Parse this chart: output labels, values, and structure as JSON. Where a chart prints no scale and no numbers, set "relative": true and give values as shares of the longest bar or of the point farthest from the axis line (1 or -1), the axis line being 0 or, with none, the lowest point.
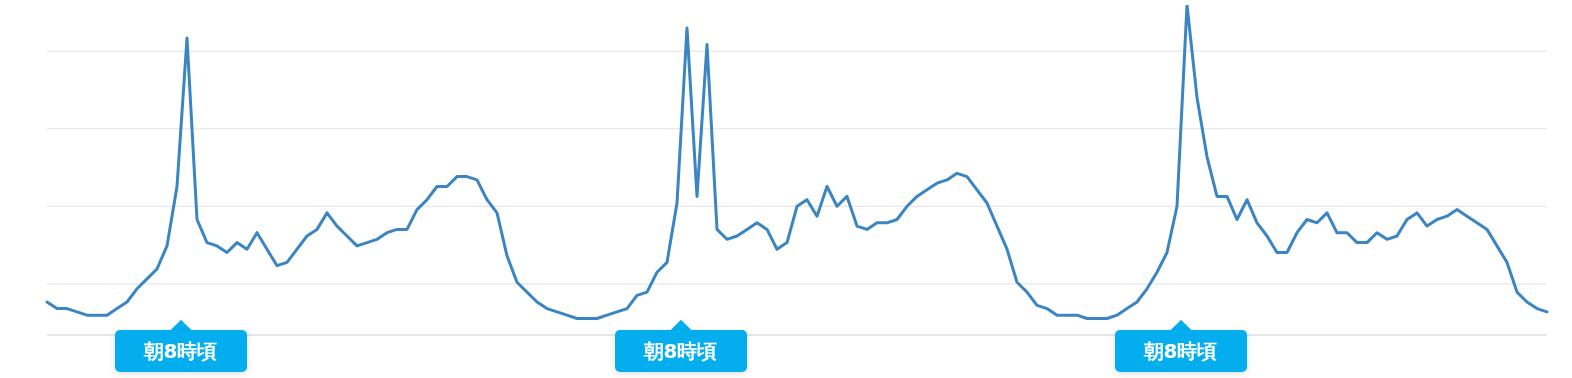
{
  "chart_data": {
    "type": "line",
    "relative": true,
    "grid": "y",
    "marker": "none",
    "line_style": "solid",
    "categories": [
      null,
      null,
      null,
      null,
      null,
      null,
      null,
      null,
      null,
      null,
      null,
      null,
      null,
      null,
      null,
      null,
      null,
      null,
      null,
      null,
      null,
      null,
      null,
      null,
      null,
      null,
      null,
      null,
      null,
      null,
      null,
      null,
      null,
      null,
      null,
      null,
      null,
      null,
      null,
      null,
      null,
      null,
      null,
      null,
      null,
      null,
      null,
      null,
      null,
      null,
      null,
      null,
      null,
      null,
      null,
      null,
      null,
      null,
      null,
      null,
      null,
      null,
      null,
      null,
      null,
      null,
      null,
      null,
      null,
      null,
      null,
      null,
      null,
      null,
      null,
      null,
      null,
      null,
      null,
      null,
      null,
      null,
      null,
      null,
      null,
      null,
      null,
      null,
      null,
      null,
      null,
      null,
      null,
      null,
      null,
      null,
      null,
      null,
      null,
      null,
      null,
      null,
      null,
      null,
      null,
      null,
      null,
      null,
      null,
      null,
      null,
      null,
      null,
      null,
      null,
      null,
      null,
      null,
      null,
      null,
      null,
      null,
      null,
      null,
      null,
      null,
      null,
      null,
      null,
      null,
      null,
      null,
      null,
      null,
      null,
      null,
      null,
      null,
      null,
      null,
      null,
      null,
      null,
      null,
      null,
      null,
      null,
      null,
      null,
      null,
      null
    ],
    "series": [
      {
        "color": "#3a85c2",
        "values": [
          0.1,
          0.08,
          0.08,
          0.07,
          0.06,
          0.06,
          0.06,
          0.08,
          0.1,
          0.14,
          0.17,
          0.2,
          0.27,
          0.45,
          0.9,
          0.35,
          0.28,
          0.27,
          0.25,
          0.28,
          0.26,
          0.31,
          0.26,
          0.21,
          0.22,
          0.26,
          0.3,
          0.32,
          0.37,
          0.33,
          0.3,
          0.27,
          0.28,
          0.29,
          0.31,
          0.32,
          0.32,
          0.38,
          0.41,
          0.45,
          0.45,
          0.48,
          0.48,
          0.47,
          0.41,
          0.37,
          0.24,
          0.16,
          0.13,
          0.1,
          0.08,
          0.07,
          0.06,
          0.05,
          0.05,
          0.05,
          0.06,
          0.07,
          0.08,
          0.12,
          0.13,
          0.19,
          0.22,
          0.4,
          0.93,
          0.42,
          0.88,
          0.32,
          0.29,
          0.3,
          0.32,
          0.34,
          0.32,
          0.26,
          0.28,
          0.39,
          0.41,
          0.36,
          0.45,
          0.39,
          0.42,
          0.33,
          0.32,
          0.34,
          0.34,
          0.35,
          0.39,
          0.42,
          0.44,
          0.46,
          0.47,
          0.49,
          0.48,
          0.44,
          0.4,
          0.33,
          0.26,
          0.16,
          0.13,
          0.09,
          0.08,
          0.06,
          0.06,
          0.06,
          0.05,
          0.05,
          0.05,
          0.06,
          0.08,
          0.1,
          0.14,
          0.19,
          0.25,
          0.39,
          1,
          0.72,
          0.54,
          0.42,
          0.42,
          0.35,
          0.41,
          0.34,
          0.3,
          0.25,
          0.25,
          0.31,
          0.35,
          0.34,
          0.37,
          0.31,
          0.31,
          0.28,
          0.28,
          0.31,
          0.29,
          0.3,
          0.35,
          0.37,
          0.33,
          0.35,
          0.36,
          0.38,
          0.36,
          0.34,
          0.32,
          0.27,
          0.22,
          0.13,
          0.1,
          0.08,
          0.07
        ]
      }
    ],
    "annotations": [
      "朝8時頃",
      "朝8時頃",
      "朝8時頃"
    ]
  }
}
